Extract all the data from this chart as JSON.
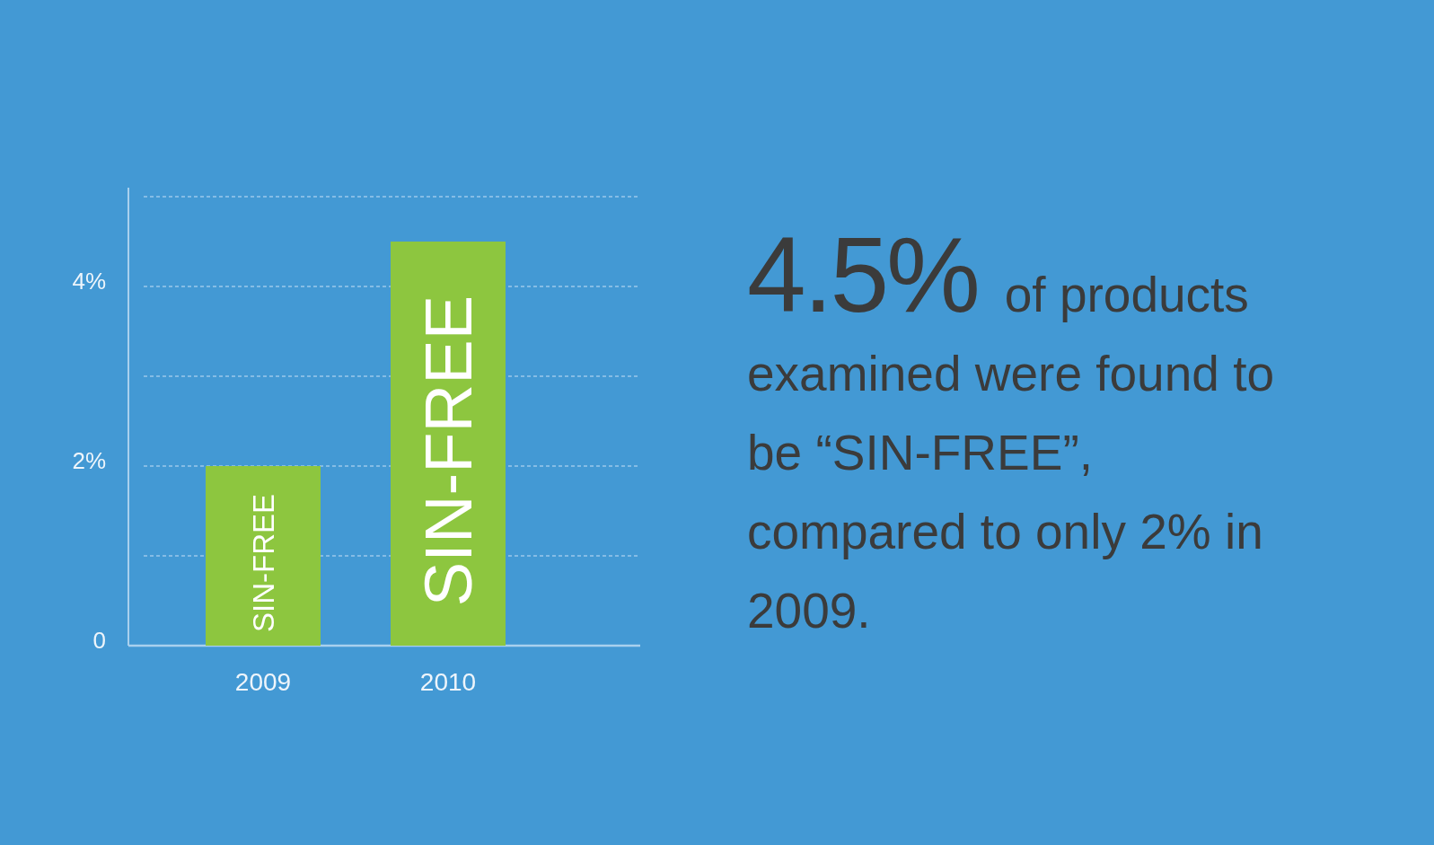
{
  "chart_data": {
    "type": "bar",
    "categories": [
      "2009",
      "2010"
    ],
    "values": [
      2,
      4.5
    ],
    "color": "#8dc63f",
    "ylim": [
      0,
      5.1
    ],
    "yticks": [
      0,
      {
        "value": 1,
        "label": null
      },
      {
        "value": 2,
        "label": "2%"
      },
      {
        "value": 3,
        "label": null
      },
      {
        "value": 4,
        "label": "4%"
      },
      {
        "value": 5,
        "label": null
      }
    ],
    "grid": "y",
    "annotations": [
      "SIN-FREE",
      "SIN-FREE",
      "4.5% of products examined were found to be “SIN-FREE”, compared to only 2% in 2009."
    ]
  }
}
